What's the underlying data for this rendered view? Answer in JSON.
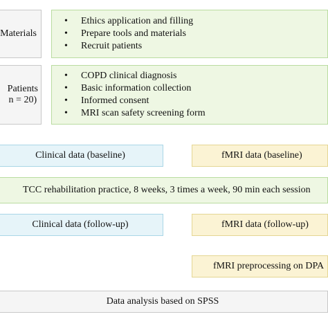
{
  "materials": {
    "label": "Materials",
    "items": [
      "Ethics application and filling",
      "Prepare tools and materials",
      "Recruit patients"
    ]
  },
  "patients": {
    "label_line1": "Patients",
    "label_line2": "n = 20)",
    "items": [
      "COPD clinical diagnosis",
      "Basic information collection",
      "Informed consent",
      "MRI scan safety screening form"
    ]
  },
  "clinical_baseline": "Clinical data (baseline)",
  "fmri_baseline": "fMRI data (baseline)",
  "tcc_practice": "TCC rehabilitation practice, 8 weeks, 3 times a week, 90 min each session",
  "clinical_followup": "Clinical data (follow-up)",
  "fmri_followup": "fMRI data (follow-up)",
  "fmri_preprocessing": "fMRI preprocessing on DPA",
  "data_analysis": "Data analysis based on SPSS"
}
